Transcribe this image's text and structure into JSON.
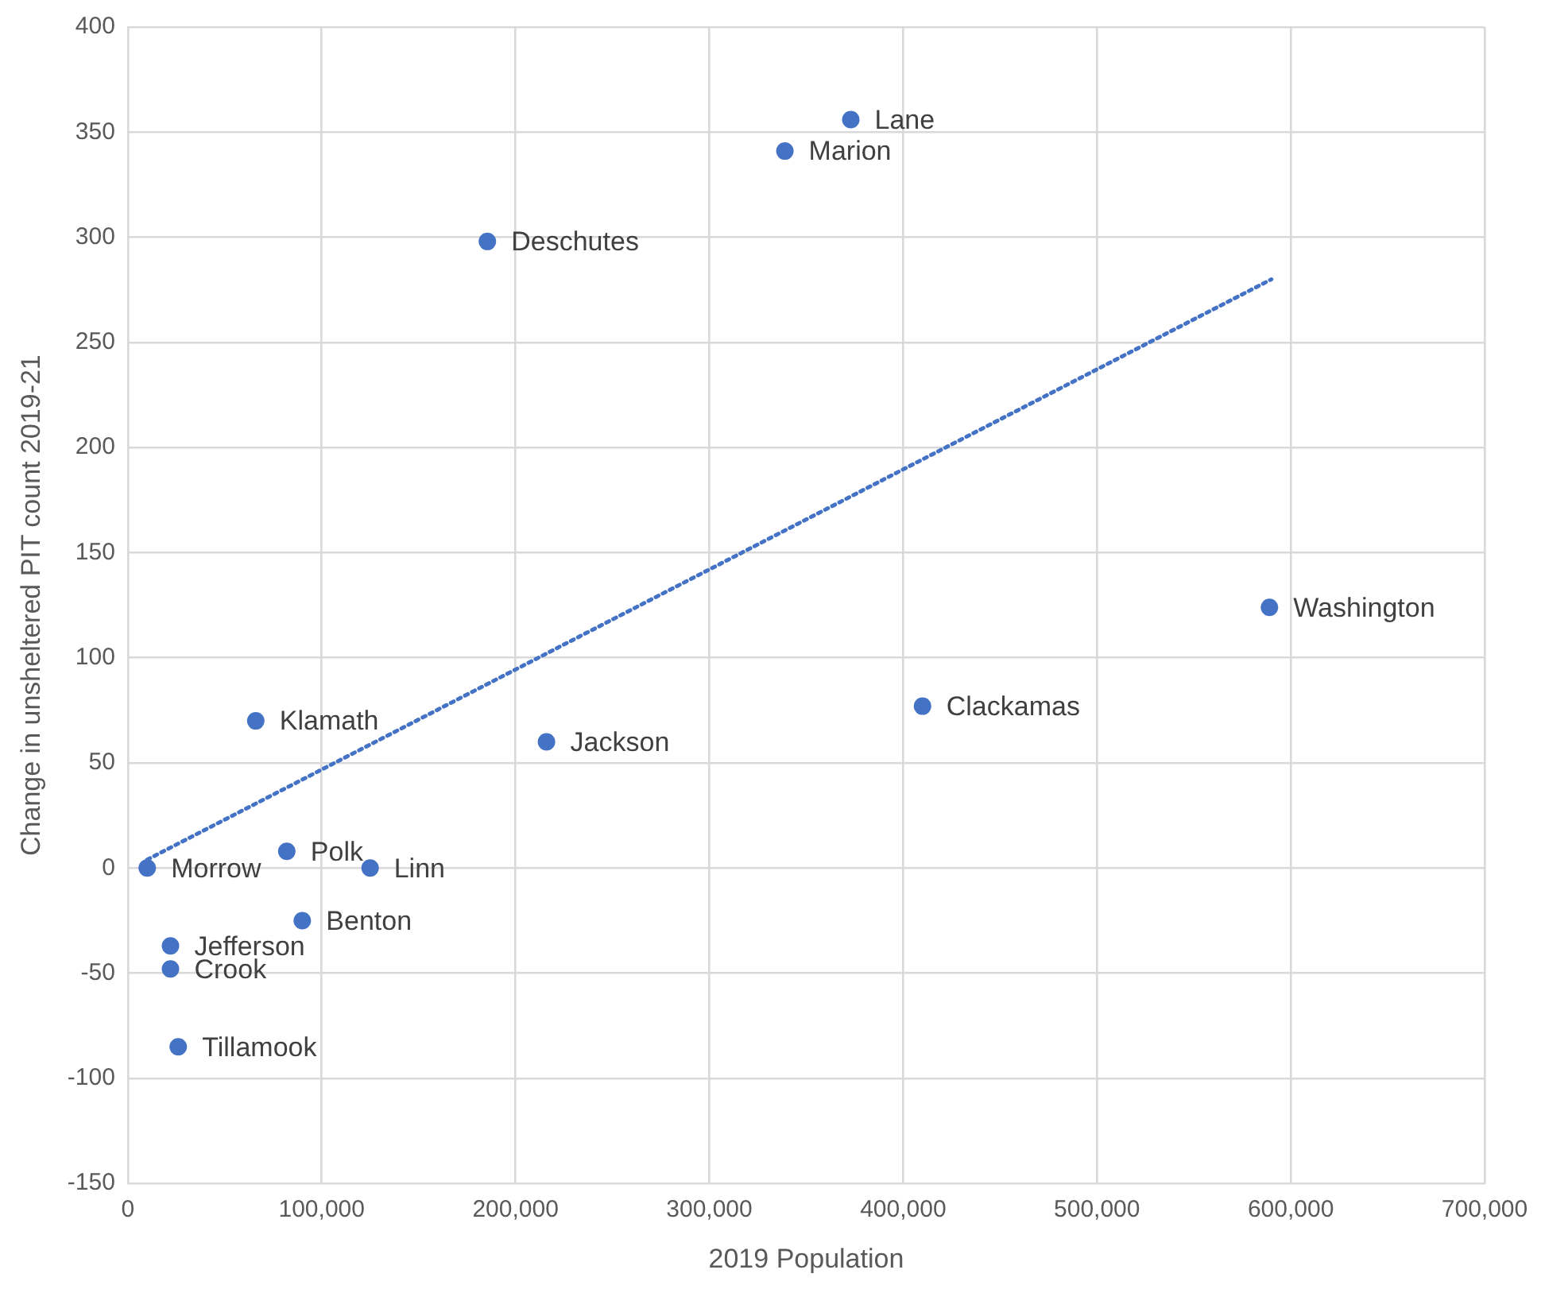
{
  "chart_data": {
    "type": "scatter",
    "xlabel": "2019 Population",
    "ylabel": "Change in unsheltered PIT count 2019-21",
    "series": [
      {
        "type": "scatter",
        "color": "#4472c4",
        "marker": "circle",
        "x": [
          373000,
          339000,
          185500,
          589000,
          410000,
          216000,
          66000,
          82000,
          10000,
          125000,
          90000,
          22000,
          22000,
          26000
        ],
        "values": [
          356,
          341,
          298,
          124,
          77,
          60,
          70,
          8,
          0,
          0,
          -25,
          -37,
          -48,
          -85
        ]
      },
      {
        "type": "line",
        "color": "#4472c4",
        "marker": "none",
        "line_style": "dotted",
        "x": [
          10000,
          590000
        ],
        "values": [
          4,
          280
        ]
      }
    ],
    "annotations": [
      {
        "text": "Lane",
        "x": 373000,
        "y": 356
      },
      {
        "text": "Marion",
        "x": 339000,
        "y": 341
      },
      {
        "text": "Deschutes",
        "x": 185500,
        "y": 298
      },
      {
        "text": "Washington",
        "x": 589000,
        "y": 124
      },
      {
        "text": "Clackamas",
        "x": 410000,
        "y": 77
      },
      {
        "text": "Jackson",
        "x": 216000,
        "y": 60
      },
      {
        "text": "Klamath",
        "x": 66000,
        "y": 70
      },
      {
        "text": "Polk",
        "x": 82000,
        "y": 8
      },
      {
        "text": "Morrow",
        "x": 10000,
        "y": 0
      },
      {
        "text": "Linn",
        "x": 125000,
        "y": 0
      },
      {
        "text": "Benton",
        "x": 90000,
        "y": -25
      },
      {
        "text": "Jefferson",
        "x": 22000,
        "y": -37
      },
      {
        "text": "Crook",
        "x": 22000,
        "y": -48
      },
      {
        "text": "Tillamook",
        "x": 26000,
        "y": -85
      }
    ],
    "xlim": [
      0,
      700000
    ],
    "xticks": [
      0,
      {
        "value": 100000,
        "label": "100,000"
      },
      {
        "value": 200000,
        "label": "200,000"
      },
      {
        "value": 300000,
        "label": "300,000"
      },
      {
        "value": 400000,
        "label": "400,000"
      },
      {
        "value": 500000,
        "label": "500,000"
      },
      {
        "value": 600000,
        "label": "600,000"
      },
      {
        "value": 700000,
        "label": "700,000"
      }
    ],
    "ylim": [
      -150,
      400
    ],
    "yticks": [
      -150,
      -100,
      -50,
      0,
      50,
      100,
      150,
      200,
      250,
      300,
      350,
      400
    ],
    "grid": true,
    "legend": false
  }
}
